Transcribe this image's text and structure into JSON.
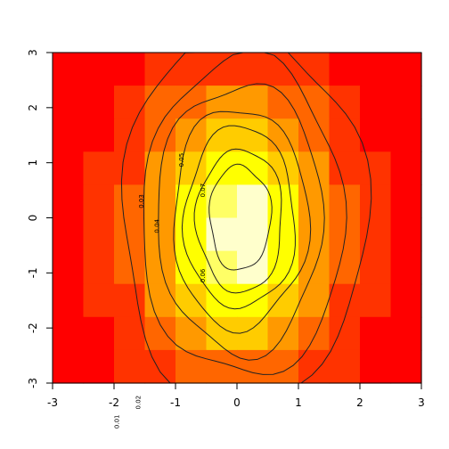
{
  "chart_data": {
    "type": "heatmap",
    "title": "",
    "xlabel": "",
    "ylabel": "",
    "xlim": [
      -3,
      3
    ],
    "ylim": [
      -3,
      3
    ],
    "x_ticks": [
      "-3",
      "-2",
      "-1",
      "0",
      "1",
      "2",
      "3"
    ],
    "y_ticks": [
      "-3",
      "-2",
      "-1",
      "0",
      "1",
      "2",
      "3"
    ],
    "colormap": [
      "#FF0000",
      "#FF3300",
      "#FF6600",
      "#FF9900",
      "#FFCC00",
      "#FFFF00",
      "#FFFF66",
      "#FFFFCC"
    ],
    "grid": {
      "columns": 12,
      "rows": 10,
      "levels": [
        [
          0,
          0,
          0,
          1,
          1,
          1,
          1,
          1,
          1,
          0,
          0,
          0
        ],
        [
          0,
          0,
          1,
          2,
          2,
          3,
          3,
          2,
          2,
          1,
          0,
          0
        ],
        [
          0,
          0,
          1,
          2,
          3,
          4,
          4,
          3,
          2,
          1,
          0,
          0
        ],
        [
          0,
          1,
          1,
          3,
          4,
          5,
          5,
          4,
          3,
          1,
          1,
          0
        ],
        [
          0,
          1,
          2,
          3,
          5,
          6,
          7,
          5,
          3,
          2,
          1,
          0
        ],
        [
          0,
          1,
          2,
          3,
          5,
          7,
          7,
          5,
          3,
          2,
          1,
          0
        ],
        [
          0,
          1,
          2,
          3,
          5,
          6,
          7,
          5,
          3,
          2,
          1,
          0
        ],
        [
          0,
          1,
          1,
          3,
          4,
          5,
          5,
          4,
          3,
          1,
          1,
          0
        ],
        [
          0,
          0,
          1,
          2,
          3,
          4,
          4,
          3,
          2,
          1,
          0,
          0
        ],
        [
          0,
          0,
          1,
          1,
          2,
          2,
          2,
          2,
          1,
          1,
          0,
          0
        ]
      ]
    },
    "contours": [
      {
        "level": "0.01",
        "cx": 0.1,
        "cy": 0.0,
        "rx": 2.0,
        "ry": 3.4,
        "label_at": [
          -1.95,
          -3.7
        ]
      },
      {
        "level": "0.02",
        "cx": 0.1,
        "cy": 0.0,
        "rx": 1.65,
        "ry": 2.9,
        "label_at": [
          -1.6,
          -3.35
        ]
      },
      {
        "level": "0.03",
        "cx": 0.05,
        "cy": 0.0,
        "rx": 1.35,
        "ry": 2.45,
        "label_at": [
          -1.55,
          0.3
        ]
      },
      {
        "level": "0.04",
        "cx": 0.05,
        "cy": 0.0,
        "rx": 1.1,
        "ry": 2.0,
        "label_at": [
          -1.3,
          -0.15
        ]
      },
      {
        "level": "0.05",
        "cx": 0.05,
        "cy": 0.0,
        "rx": 0.9,
        "ry": 1.65,
        "label_at": [
          -0.9,
          1.05
        ]
      },
      {
        "level": "0.06",
        "cx": 0.05,
        "cy": -0.05,
        "rx": 0.7,
        "ry": 1.3,
        "label_at": [
          -0.55,
          -1.05
        ]
      },
      {
        "level": "0.07",
        "cx": 0.05,
        "cy": 0.0,
        "rx": 0.5,
        "ry": 0.95,
        "label_at": [
          -0.55,
          0.5
        ]
      }
    ]
  }
}
